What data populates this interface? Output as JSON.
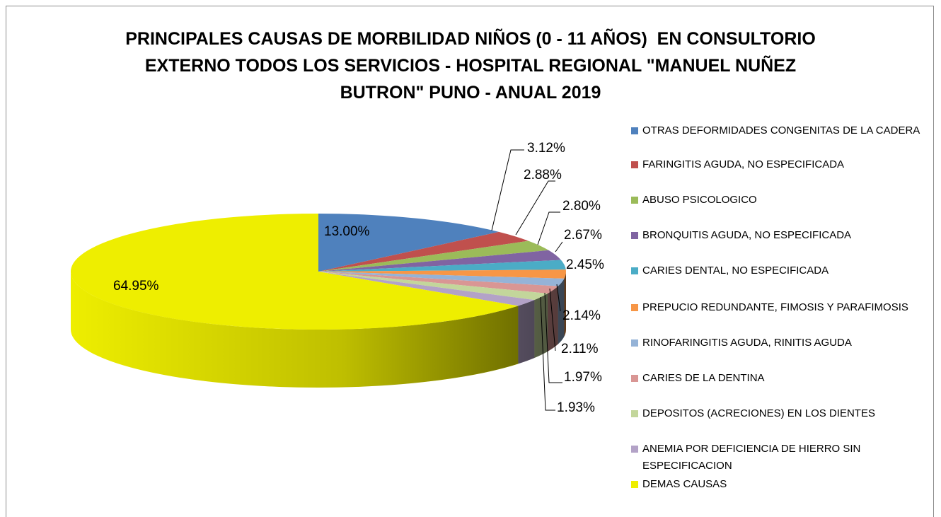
{
  "chart_data": {
    "type": "pie3d",
    "title": [
      "PRINCIPALES CAUSAS DE MORBILIDAD NIÑOS (0 - 11 AÑOS)  EN CONSULTORIO",
      "EXTERNO TODOS LOS SERVICIOS - HOSPITAL REGIONAL \"MANUEL NUÑEZ",
      "BUTRON\" PUNO - ANUAL 2019"
    ],
    "categories": [
      "OTRAS DEFORMIDADES CONGENITAS DE LA CADERA",
      "FARINGITIS AGUDA, NO ESPECIFICADA",
      "ABUSO PSICOLOGICO",
      "BRONQUITIS AGUDA, NO ESPECIFICADA",
      "CARIES DENTAL, NO ESPECIFICADA",
      "PREPUCIO REDUNDANTE, FIMOSIS Y PARAFIMOSIS",
      "RINOFARINGITIS AGUDA, RINITIS AGUDA",
      "CARIES DE LA DENTINA",
      "DEPOSITOS (ACRECIONES) EN LOS DIENTES",
      "ANEMIA POR DEFICIENCIA DE HIERRO SIN ESPECIFICACION",
      "DEMAS CAUSAS"
    ],
    "values": [
      13.0,
      3.12,
      2.88,
      2.8,
      2.67,
      2.45,
      2.14,
      2.11,
      1.97,
      1.93,
      64.95
    ],
    "value_labels": [
      "13.00%",
      "3.12%",
      "2.88%",
      "2.80%",
      "2.67%",
      "2.45%",
      "2.14%",
      "2.11%",
      "1.97%",
      "1.93%",
      "64.95%"
    ],
    "colors": [
      "#4f81bd",
      "#c0504d",
      "#9bbb59",
      "#8064a2",
      "#4bacc6",
      "#f79646",
      "#95b3d7",
      "#d99694",
      "#c3d69b",
      "#b3a2c7",
      "#eeee00"
    ],
    "legend": "right"
  }
}
